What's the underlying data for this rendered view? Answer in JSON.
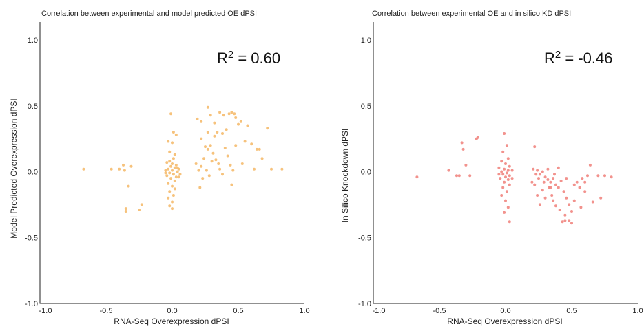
{
  "chart_data": [
    {
      "type": "scatter",
      "title": "Correlation between experimental and model predicted OE dPSI",
      "xlabel": "RNA-Seq  Overexpression dPSI",
      "ylabel": "Model Predicted Overexpression dPSI",
      "xlim": [
        -1.0,
        1.0
      ],
      "ylim": [
        -1.0,
        1.0
      ],
      "x_ticks": [
        "-1.0",
        "-0.5",
        "0.0",
        "0.5",
        "1.0"
      ],
      "y_ticks": [
        "-1.0",
        "-0.5",
        "0.0",
        "0.5",
        "1.0"
      ],
      "r2_base": "R",
      "r2_exp": "2",
      "r2_value": " = 0.60",
      "color": "#f5b765",
      "grid": false,
      "points": [
        [
          -0.67,
          0.02
        ],
        [
          -0.46,
          0.02
        ],
        [
          -0.4,
          0.02
        ],
        [
          -0.37,
          0.05
        ],
        [
          -0.36,
          0.01
        ],
        [
          -0.31,
          0.04
        ],
        [
          -0.33,
          -0.11
        ],
        [
          -0.35,
          -0.28
        ],
        [
          -0.35,
          -0.3
        ],
        [
          -0.23,
          -0.25
        ],
        [
          -0.25,
          -0.29
        ],
        [
          -0.01,
          0.44
        ],
        [
          0.01,
          0.3
        ],
        [
          0.03,
          0.28
        ],
        [
          -0.03,
          0.23
        ],
        [
          0.0,
          0.22
        ],
        [
          -0.02,
          0.15
        ],
        [
          0.02,
          0.13
        ],
        [
          0.01,
          0.1
        ],
        [
          -0.02,
          0.08
        ],
        [
          -0.04,
          0.07
        ],
        [
          0.0,
          0.06
        ],
        [
          0.03,
          0.05
        ],
        [
          -0.01,
          0.04
        ],
        [
          0.02,
          0.03
        ],
        [
          -0.03,
          0.02
        ],
        [
          0.0,
          0.01
        ],
        [
          0.04,
          0.0
        ],
        [
          -0.02,
          -0.01
        ],
        [
          0.01,
          -0.02
        ],
        [
          -0.04,
          -0.03
        ],
        [
          0.03,
          -0.04
        ],
        [
          -0.01,
          -0.05
        ],
        [
          0.02,
          -0.07
        ],
        [
          -0.03,
          -0.09
        ],
        [
          0.0,
          -0.11
        ],
        [
          0.02,
          -0.13
        ],
        [
          -0.02,
          -0.15
        ],
        [
          0.01,
          -0.18
        ],
        [
          -0.03,
          -0.2
        ],
        [
          0.0,
          -0.23
        ],
        [
          -0.02,
          -0.26
        ],
        [
          0.0,
          -0.28
        ],
        [
          0.05,
          0.02
        ],
        [
          0.06,
          -0.02
        ],
        [
          -0.05,
          0.01
        ],
        [
          -0.05,
          -0.01
        ],
        [
          0.04,
          0.03
        ],
        [
          0.05,
          -0.04
        ],
        [
          0.19,
          0.4
        ],
        [
          0.22,
          0.38
        ],
        [
          0.27,
          0.49
        ],
        [
          0.29,
          0.43
        ],
        [
          0.32,
          0.37
        ],
        [
          0.34,
          0.3
        ],
        [
          0.36,
          0.45
        ],
        [
          0.38,
          0.29
        ],
        [
          0.39,
          0.43
        ],
        [
          0.41,
          0.32
        ],
        [
          0.43,
          0.44
        ],
        [
          0.45,
          0.45
        ],
        [
          0.47,
          0.44
        ],
        [
          0.48,
          0.41
        ],
        [
          0.5,
          0.36
        ],
        [
          0.52,
          0.38
        ],
        [
          0.55,
          0.23
        ],
        [
          0.6,
          0.21
        ],
        [
          0.64,
          0.17
        ],
        [
          0.66,
          0.17
        ],
        [
          0.72,
          0.33
        ],
        [
          0.75,
          0.02
        ],
        [
          0.83,
          0.02
        ],
        [
          0.22,
          0.25
        ],
        [
          0.25,
          0.19
        ],
        [
          0.27,
          0.17
        ],
        [
          0.29,
          0.2
        ],
        [
          0.31,
          0.14
        ],
        [
          0.33,
          0.09
        ],
        [
          0.35,
          0.06
        ],
        [
          0.24,
          0.1
        ],
        [
          0.22,
          0.04
        ],
        [
          0.26,
          0.01
        ],
        [
          0.28,
          -0.03
        ],
        [
          0.3,
          0.08
        ],
        [
          0.21,
          -0.12
        ],
        [
          0.23,
          -0.05
        ],
        [
          0.36,
          0.02
        ],
        [
          0.4,
          0.18
        ],
        [
          0.42,
          0.12
        ],
        [
          0.44,
          0.05
        ],
        [
          0.46,
          0.01
        ],
        [
          0.38,
          -0.02
        ],
        [
          0.45,
          -0.1
        ],
        [
          0.53,
          0.06
        ],
        [
          0.57,
          0.35
        ],
        [
          0.62,
          0.02
        ],
        [
          0.68,
          0.1
        ],
        [
          0.48,
          0.2
        ],
        [
          0.32,
          0.27
        ],
        [
          0.27,
          0.3
        ],
        [
          0.18,
          0.06
        ],
        [
          0.2,
          0.01
        ]
      ]
    },
    {
      "type": "scatter",
      "title": "Correlation between experimental OE and in silico KD dPSI",
      "xlabel": "RNA-Seq  Overexpression dPSI",
      "ylabel": "In Silico Knockdown dPSI",
      "xlim": [
        -1.0,
        1.0
      ],
      "ylim": [
        -1.0,
        1.0
      ],
      "x_ticks": [
        "-1.0",
        "-0.5",
        "0.0",
        "0.5",
        "1.0"
      ],
      "y_ticks": [
        "-1.0",
        "-0.5",
        "0.0",
        "0.5",
        "1.0"
      ],
      "r2_base": "R",
      "r2_exp": "2",
      "r2_value": " = -0.46",
      "color": "#f07f79",
      "grid": false,
      "points": [
        [
          -0.67,
          -0.04
        ],
        [
          -0.43,
          0.01
        ],
        [
          -0.37,
          -0.03
        ],
        [
          -0.33,
          0.22
        ],
        [
          -0.32,
          0.17
        ],
        [
          -0.3,
          0.05
        ],
        [
          -0.35,
          -0.03
        ],
        [
          -0.27,
          -0.03
        ],
        [
          -0.22,
          0.25
        ],
        [
          -0.21,
          0.26
        ],
        [
          -0.01,
          0.29
        ],
        [
          0.01,
          0.2
        ],
        [
          -0.02,
          0.15
        ],
        [
          0.02,
          0.1
        ],
        [
          -0.03,
          0.08
        ],
        [
          0.0,
          0.06
        ],
        [
          0.03,
          0.04
        ],
        [
          -0.01,
          0.02
        ],
        [
          0.02,
          0.01
        ],
        [
          -0.03,
          0.0
        ],
        [
          0.01,
          -0.01
        ],
        [
          -0.02,
          -0.02
        ],
        [
          0.03,
          -0.03
        ],
        [
          0.0,
          -0.04
        ],
        [
          -0.04,
          -0.05
        ],
        [
          0.02,
          -0.06
        ],
        [
          -0.01,
          -0.08
        ],
        [
          0.03,
          -0.1
        ],
        [
          -0.02,
          -0.12
        ],
        [
          0.01,
          -0.15
        ],
        [
          -0.03,
          -0.18
        ],
        [
          0.0,
          -0.22
        ],
        [
          0.02,
          -0.27
        ],
        [
          -0.01,
          -0.31
        ],
        [
          0.03,
          -0.38
        ],
        [
          0.05,
          0.01
        ],
        [
          -0.05,
          -0.02
        ],
        [
          0.05,
          -0.05
        ],
        [
          -0.05,
          0.03
        ],
        [
          0.22,
          0.19
        ],
        [
          0.21,
          0.02
        ],
        [
          0.24,
          0.01
        ],
        [
          0.26,
          -0.02
        ],
        [
          0.28,
          0.0
        ],
        [
          0.3,
          -0.04
        ],
        [
          0.32,
          -0.06
        ],
        [
          0.34,
          -0.08
        ],
        [
          0.36,
          -0.05
        ],
        [
          0.38,
          -0.1
        ],
        [
          0.4,
          -0.12
        ],
        [
          0.42,
          -0.07
        ],
        [
          0.44,
          -0.15
        ],
        [
          0.46,
          -0.2
        ],
        [
          0.48,
          -0.25
        ],
        [
          0.5,
          -0.3
        ],
        [
          0.52,
          -0.1
        ],
        [
          0.54,
          -0.08
        ],
        [
          0.56,
          -0.12
        ],
        [
          0.58,
          -0.05
        ],
        [
          0.6,
          -0.15
        ],
        [
          0.62,
          -0.03
        ],
        [
          0.64,
          0.05
        ],
        [
          0.66,
          -0.23
        ],
        [
          0.7,
          -0.03
        ],
        [
          0.72,
          -0.2
        ],
        [
          0.75,
          -0.03
        ],
        [
          0.8,
          -0.04
        ],
        [
          0.22,
          -0.1
        ],
        [
          0.24,
          -0.18
        ],
        [
          0.26,
          -0.25
        ],
        [
          0.28,
          -0.14
        ],
        [
          0.3,
          -0.2
        ],
        [
          0.33,
          -0.12
        ],
        [
          0.35,
          -0.18
        ],
        [
          0.38,
          -0.26
        ],
        [
          0.41,
          -0.29
        ],
        [
          0.45,
          -0.33
        ],
        [
          0.48,
          -0.37
        ],
        [
          0.5,
          -0.39
        ],
        [
          0.45,
          -0.37
        ],
        [
          0.43,
          -0.38
        ],
        [
          0.36,
          -0.22
        ],
        [
          0.34,
          -0.12
        ],
        [
          0.4,
          0.03
        ],
        [
          0.46,
          -0.05
        ],
        [
          0.52,
          -0.22
        ],
        [
          0.57,
          -0.27
        ],
        [
          0.6,
          -0.08
        ],
        [
          0.25,
          -0.05
        ],
        [
          0.29,
          -0.08
        ],
        [
          0.32,
          0.02
        ],
        [
          0.37,
          -0.02
        ],
        [
          0.2,
          -0.08
        ],
        [
          0.23,
          -0.02
        ]
      ]
    }
  ]
}
